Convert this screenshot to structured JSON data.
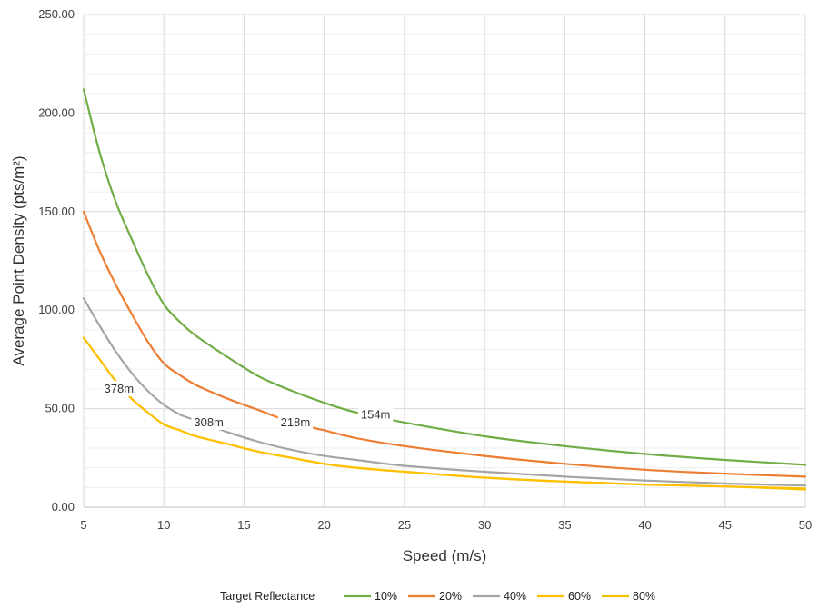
{
  "chart_data": {
    "type": "line",
    "xlabel": "Speed (m/s)",
    "ylabel": "Average Point Density   (pts/m²)",
    "xlim": [
      5,
      50
    ],
    "ylim": [
      0,
      250
    ],
    "x_ticks": [
      5,
      10,
      15,
      20,
      25,
      30,
      35,
      40,
      45,
      50
    ],
    "y_ticks": [
      0,
      50,
      100,
      150,
      200,
      250
    ],
    "y_tick_labels": [
      "0.00",
      "50.00",
      "100.00",
      "150.00",
      "200.00",
      "250.00"
    ],
    "grid": true,
    "legend_title": "Target Reflectance",
    "legend_position": "bottom",
    "series": [
      {
        "name": "10%",
        "color": "#70ad47",
        "x": [
          5,
          6,
          7,
          8,
          9,
          10,
          11,
          12,
          14,
          16,
          18,
          20,
          22,
          25,
          30,
          35,
          40,
          45,
          50
        ],
        "y": [
          212,
          180,
          155,
          136,
          118,
          103,
          94,
          87,
          76,
          66,
          59,
          53,
          48,
          43,
          36,
          31,
          27,
          24,
          21.5
        ]
      },
      {
        "name": "20%",
        "color": "#ed7d31",
        "x": [
          5,
          6,
          7,
          8,
          9,
          10,
          11,
          12,
          14,
          16,
          18,
          20,
          22,
          25,
          30,
          35,
          40,
          45,
          50
        ],
        "y": [
          150,
          130,
          113,
          98,
          84,
          73,
          67,
          62,
          55,
          49,
          43,
          39,
          35,
          31,
          26,
          22,
          19,
          17,
          15.5
        ]
      },
      {
        "name": "40%",
        "color": "#a5a5a5",
        "x": [
          5,
          6,
          7,
          8,
          9,
          10,
          11,
          12,
          14,
          16,
          18,
          20,
          22,
          25,
          30,
          35,
          40,
          45,
          50
        ],
        "y": [
          106,
          92,
          79,
          68,
          59,
          52,
          47,
          44,
          38,
          33,
          29,
          26,
          24,
          21,
          18,
          15.5,
          13.5,
          12,
          11
        ]
      },
      {
        "name": "60%",
        "color": "#ffc000",
        "x": [
          5,
          6,
          7,
          8,
          9,
          10,
          11,
          12,
          14,
          16,
          18,
          20,
          22,
          25,
          30,
          35,
          40,
          45,
          50
        ],
        "y": [
          86,
          75,
          64,
          55,
          48,
          42,
          39,
          36,
          32,
          28,
          25,
          22,
          20,
          18,
          15,
          13,
          11.5,
          10.5,
          9.5
        ]
      },
      {
        "name": "80%",
        "color": "#f2c300",
        "x": [
          5,
          6,
          7,
          8,
          9,
          10,
          11,
          12,
          14,
          16,
          18,
          20,
          22,
          25,
          30,
          35,
          40,
          45,
          50
        ],
        "y": [
          86,
          75,
          64,
          55,
          48,
          42,
          39,
          36,
          32,
          28,
          25,
          22,
          20,
          18,
          15,
          13,
          11.5,
          10.5,
          9
        ]
      }
    ],
    "annotations": [
      {
        "text": "378m",
        "x": 7.2,
        "y": 59
      },
      {
        "text": "308m",
        "x": 12.8,
        "y": 42
      },
      {
        "text": "218m",
        "x": 18.2,
        "y": 42
      },
      {
        "text": "154m",
        "x": 23.2,
        "y": 46
      }
    ]
  }
}
